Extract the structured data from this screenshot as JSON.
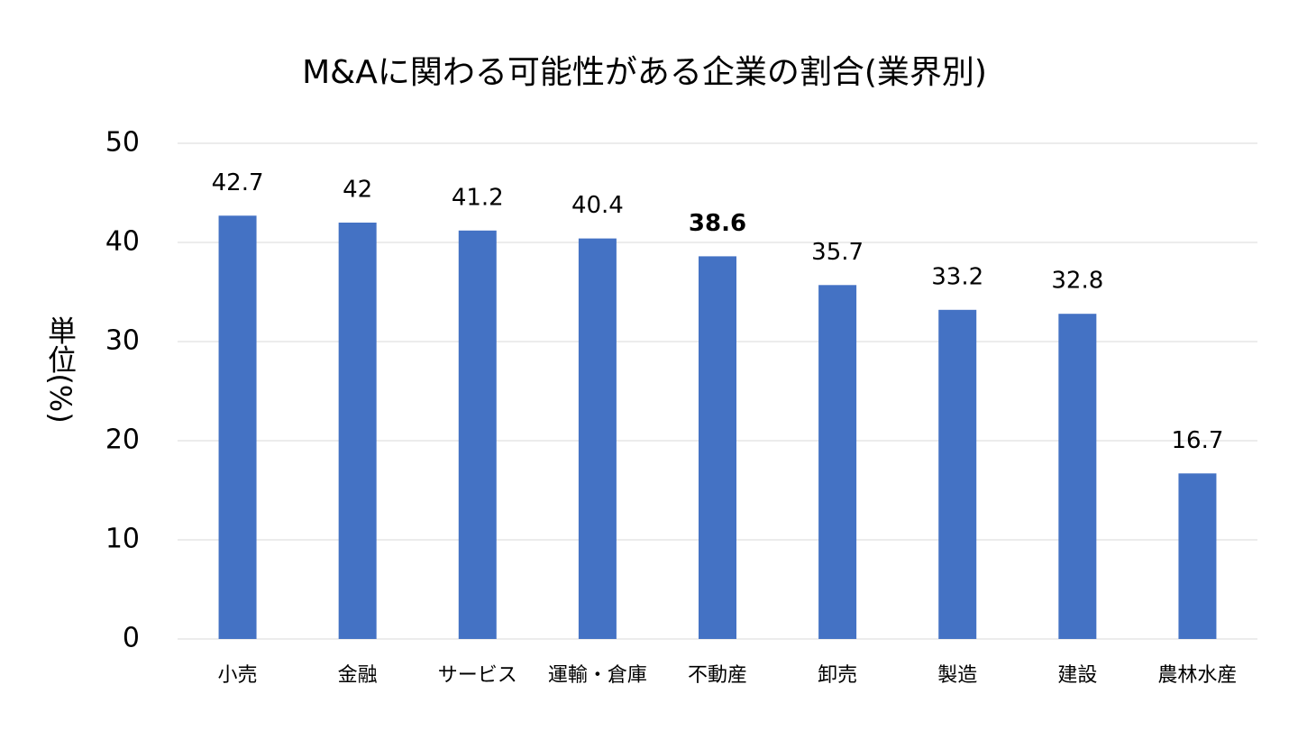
{
  "chart_data": {
    "type": "bar",
    "title": "M&Aに関わる可能性がある企業の割合(業界別)",
    "y_label": "単位(%)",
    "categories": [
      "小売",
      "金融",
      "サービス",
      "運輸・倉庫",
      "不動産",
      "卸売",
      "製造",
      "建設",
      "農林水産"
    ],
    "values": [
      42.7,
      42,
      41.2,
      40.4,
      38.6,
      35.7,
      33.2,
      32.8,
      16.7
    ],
    "color": "#4472c4",
    "emphasis": "不動産",
    "ylim": [
      0,
      50
    ],
    "yticks": [
      0,
      10,
      20,
      30,
      40,
      50
    ],
    "grid": true
  }
}
